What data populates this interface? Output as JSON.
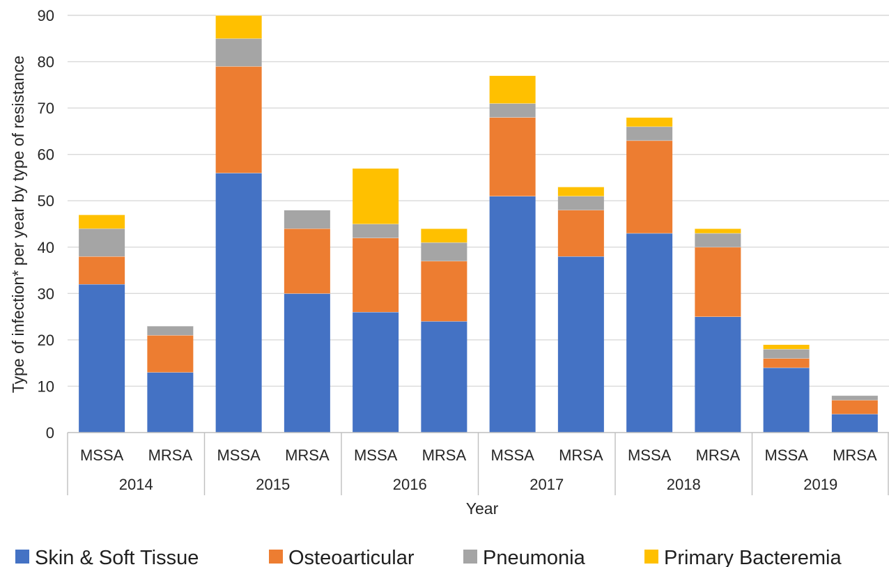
{
  "chart_data": {
    "type": "bar",
    "stacked": true,
    "title": "",
    "xlabel": "Year",
    "ylabel": "Type of infection* per year  by type of resistance",
    "ylim": [
      0,
      90
    ],
    "yticks": [
      0,
      10,
      20,
      30,
      40,
      50,
      60,
      70,
      80,
      90
    ],
    "grid": true,
    "legend_position": "bottom",
    "groups": [
      {
        "label": "2014",
        "categories": [
          "MSSA",
          "MRSA"
        ]
      },
      {
        "label": "2015",
        "categories": [
          "MSSA",
          "MRSA"
        ]
      },
      {
        "label": "2016",
        "categories": [
          "MSSA",
          "MRSA"
        ]
      },
      {
        "label": "2017",
        "categories": [
          "MSSA",
          "MRSA"
        ]
      },
      {
        "label": "2018",
        "categories": [
          "MSSA",
          "MRSA"
        ]
      },
      {
        "label": "2019",
        "categories": [
          "MSSA",
          "MRSA"
        ]
      }
    ],
    "series": [
      {
        "name": "Skin & Soft Tissue",
        "color": "#4472c4",
        "values": [
          32,
          13,
          56,
          30,
          26,
          24,
          51,
          38,
          43,
          25,
          14,
          4
        ]
      },
      {
        "name": "Osteoarticular",
        "color": "#ed7d31",
        "values": [
          6,
          8,
          23,
          14,
          16,
          13,
          17,
          10,
          20,
          15,
          2,
          3
        ]
      },
      {
        "name": "Pneumonia",
        "color": "#a5a5a5",
        "values": [
          6,
          2,
          6,
          4,
          3,
          4,
          3,
          3,
          3,
          3,
          2,
          1
        ]
      },
      {
        "name": "Primary Bacteremia",
        "color": "#ffc000",
        "values": [
          3,
          0,
          5,
          0,
          12,
          3,
          6,
          2,
          2,
          1,
          1,
          0
        ]
      }
    ]
  }
}
